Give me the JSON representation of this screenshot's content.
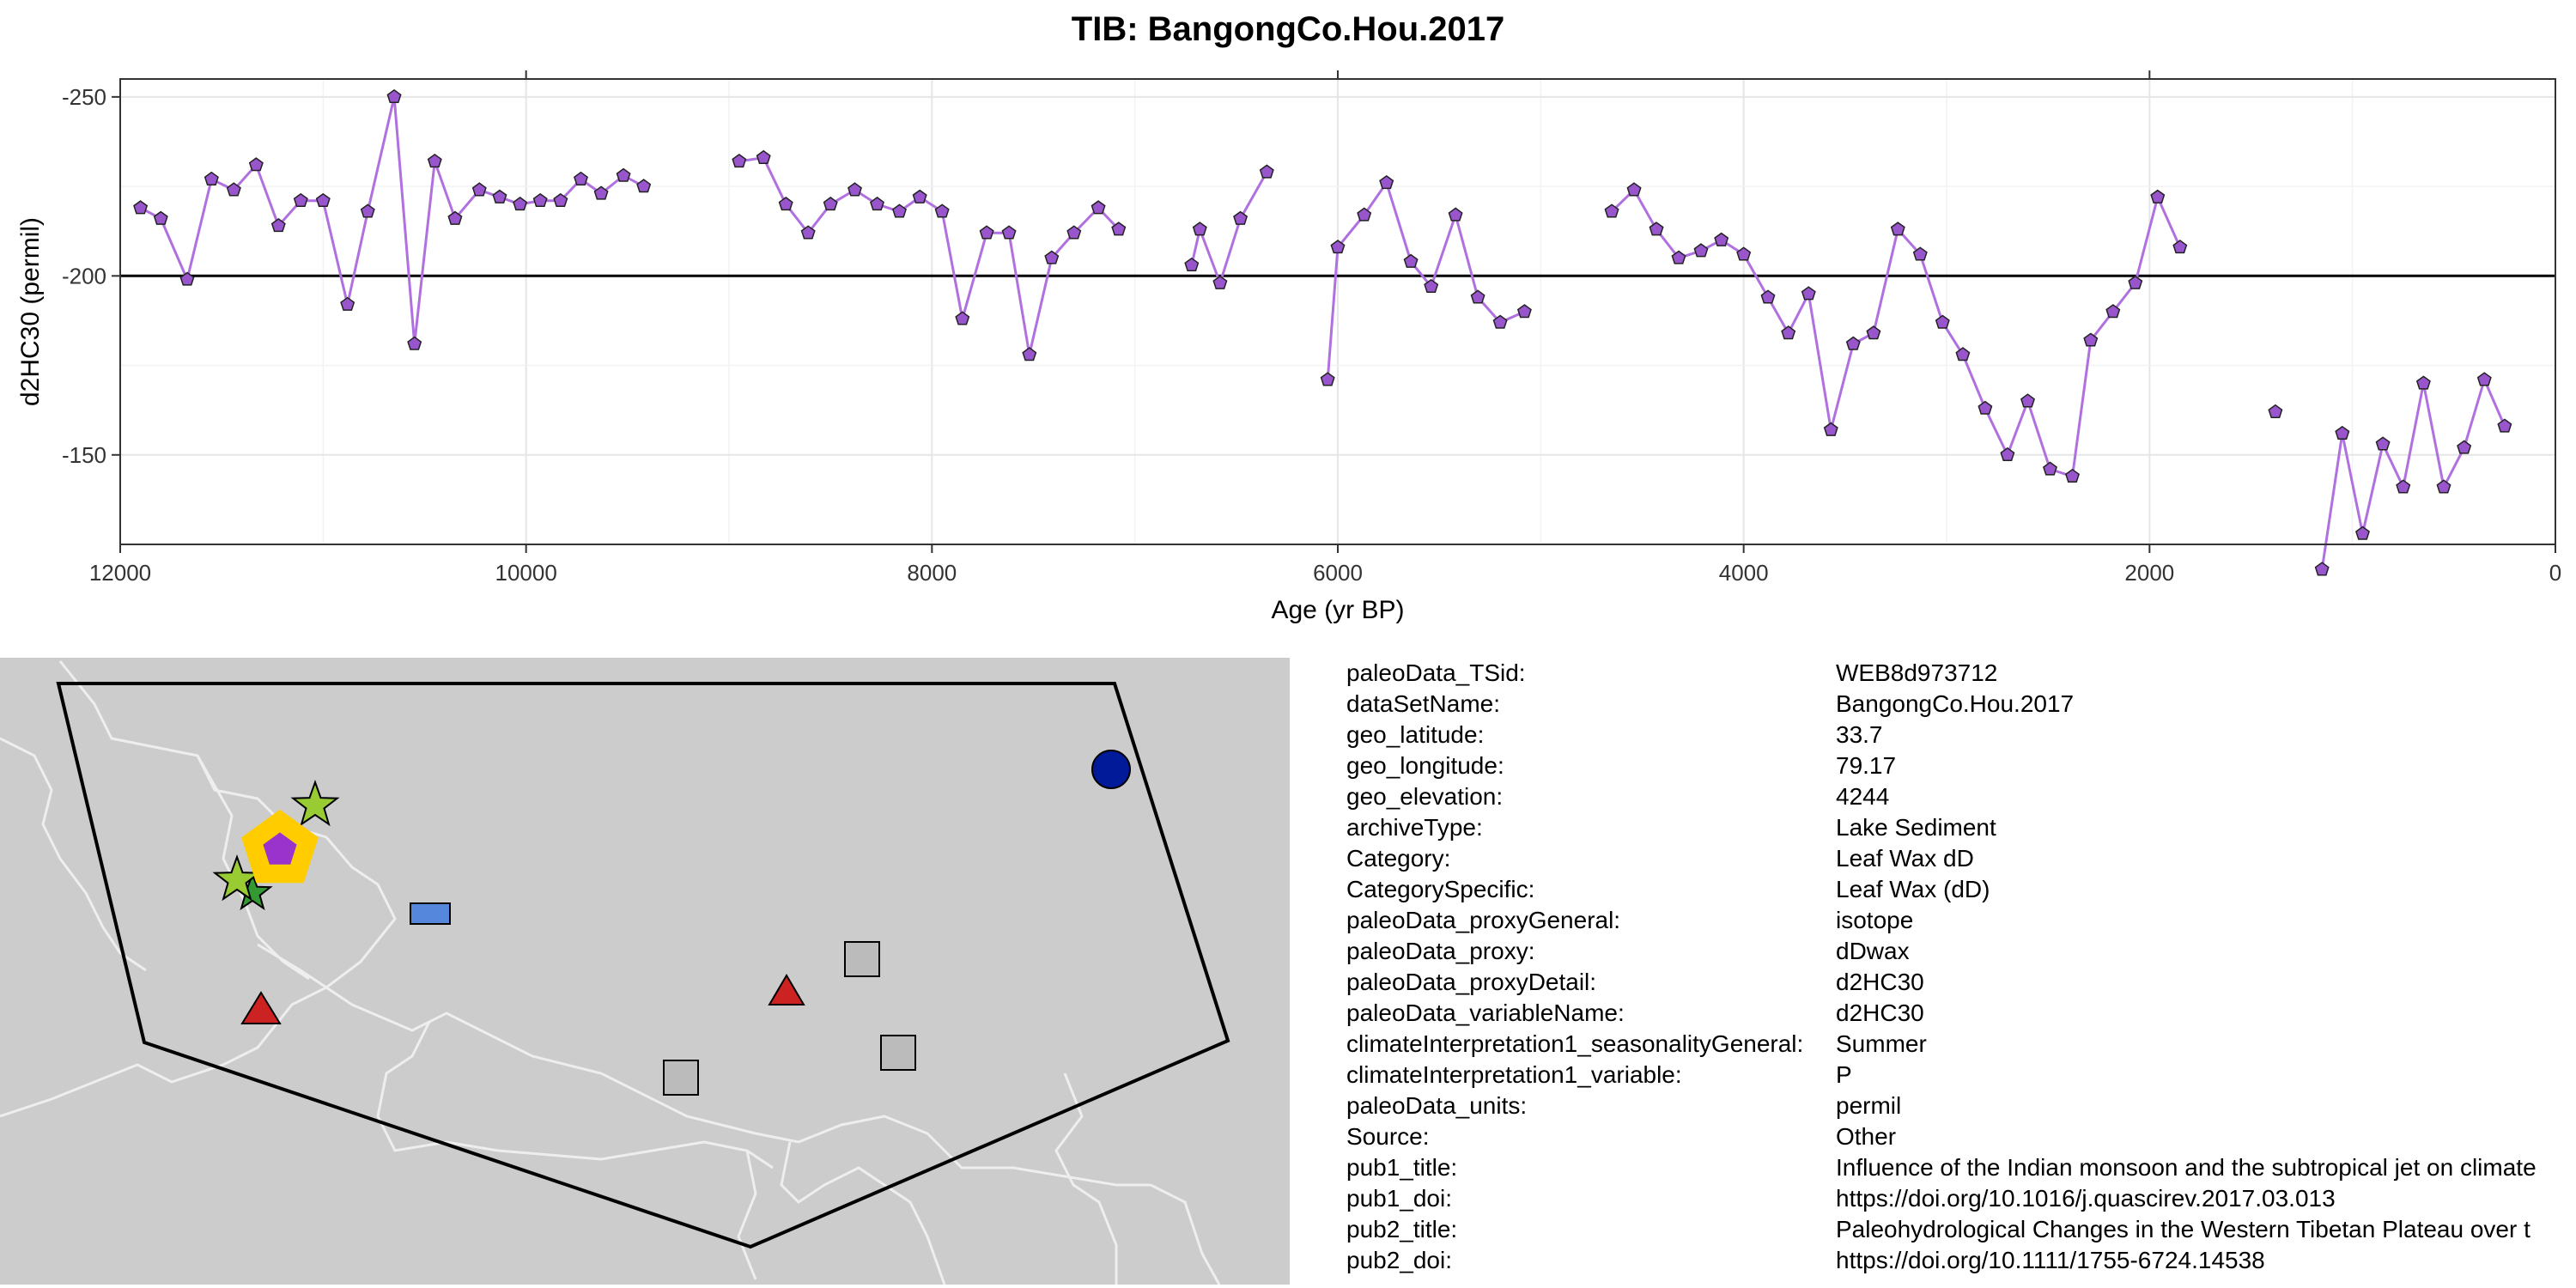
{
  "chart_data": {
    "type": "line",
    "title": "TIB: BangongCo.Hou.2017",
    "xlabel": "Age (yr BP)",
    "ylabel": "d2HC30 (permil)",
    "xlim": [
      12000,
      0
    ],
    "x_reversed": true,
    "ylim": [
      -125,
      -255
    ],
    "y_reversed": true,
    "x_ticks": [
      "12000",
      "10000",
      "8000",
      "6000",
      "4000",
      "2000",
      "0"
    ],
    "y_ticks": [
      "-250",
      "-200",
      "-150"
    ],
    "reference_line_y": -200,
    "grid": true,
    "line_color": "#b070e0",
    "marker_color": "#9955cc",
    "series": [
      {
        "values": [
          [
            [
              11900,
              -219
            ],
            [
              11800,
              -216
            ],
            [
              11670,
              -199
            ],
            [
              11550,
              -227
            ],
            [
              11440,
              -224
            ],
            [
              11330,
              -231
            ],
            [
              11220,
              -214
            ],
            [
              11110,
              -221
            ],
            [
              11000,
              -221
            ],
            [
              10880,
              -192
            ],
            [
              10780,
              -218
            ],
            [
              10650,
              -250
            ],
            [
              10550,
              -181
            ],
            [
              10450,
              -232
            ],
            [
              10350,
              -216
            ],
            [
              10230,
              -224
            ],
            [
              10130,
              -222
            ],
            [
              10030,
              -220
            ],
            [
              9930,
              -221
            ],
            [
              9830,
              -221
            ],
            [
              9730,
              -227
            ],
            [
              9630,
              -223
            ],
            [
              9520,
              -228
            ],
            [
              9420,
              -225
            ]
          ],
          [
            [
              8950,
              -232
            ],
            [
              8830,
              -233
            ],
            [
              8720,
              -220
            ],
            [
              8610,
              -212
            ],
            [
              8500,
              -220
            ],
            [
              8380,
              -224
            ],
            [
              8270,
              -220
            ],
            [
              8160,
              -218
            ],
            [
              8060,
              -222
            ],
            [
              7950,
              -218
            ],
            [
              7850,
              -188
            ],
            [
              7730,
              -212
            ],
            [
              7620,
              -212
            ],
            [
              7520,
              -178
            ],
            [
              7410,
              -205
            ],
            [
              7300,
              -212
            ],
            [
              7180,
              -219
            ],
            [
              7080,
              -213
            ]
          ],
          [
            [
              6720,
              -203
            ],
            [
              6680,
              -213
            ],
            [
              6580,
              -198
            ],
            [
              6480,
              -216
            ],
            [
              6350,
              -229
            ]
          ],
          [
            [
              6050,
              -171
            ],
            [
              6000,
              -208
            ],
            [
              5870,
              -217
            ],
            [
              5760,
              -226
            ],
            [
              5640,
              -204
            ],
            [
              5540,
              -197
            ],
            [
              5420,
              -217
            ],
            [
              5310,
              -194
            ],
            [
              5200,
              -187
            ],
            [
              5080,
              -190
            ]
          ],
          [
            [
              4650,
              -218
            ],
            [
              4540,
              -224
            ],
            [
              4430,
              -213
            ],
            [
              4320,
              -205
            ],
            [
              4210,
              -207
            ],
            [
              4110,
              -210
            ],
            [
              4000,
              -206
            ],
            [
              3880,
              -194
            ],
            [
              3780,
              -184
            ],
            [
              3680,
              -195
            ],
            [
              3570,
              -157
            ],
            [
              3460,
              -181
            ],
            [
              3360,
              -184
            ],
            [
              3240,
              -213
            ],
            [
              3130,
              -206
            ],
            [
              3020,
              -187
            ],
            [
              2920,
              -178
            ],
            [
              2810,
              -163
            ],
            [
              2700,
              -150
            ],
            [
              2600,
              -165
            ],
            [
              2490,
              -146
            ],
            [
              2380,
              -144
            ],
            [
              2290,
              -182
            ],
            [
              2180,
              -190
            ],
            [
              2070,
              -198
            ],
            [
              1960,
              -222
            ],
            [
              1850,
              -208
            ]
          ],
          [
            [
              1380,
              -162
            ]
          ],
          [
            [
              1150,
              -118
            ],
            [
              1050,
              -156
            ],
            [
              950,
              -128
            ],
            [
              850,
              -153
            ],
            [
              750,
              -141
            ],
            [
              650,
              -170
            ],
            [
              550,
              -141
            ],
            [
              450,
              -152
            ],
            [
              350,
              -171
            ],
            [
              250,
              -158
            ]
          ]
        ]
      }
    ],
    "map": {
      "polygon_color": "#000000",
      "land_color": "#cccccc",
      "border_color": "#eeeeee",
      "marker_colors": {
        "target": "#9933cc",
        "target_ring": "#ffcc00",
        "stars": "#99cc33",
        "dark_star": "#339933",
        "rectangle": "#5588dd",
        "triangles": "#cc2222",
        "squares": "#bbbbbb",
        "circle": "#001a99"
      }
    }
  },
  "metadata": [
    {
      "key": "paleoData_TSid:",
      "value": "WEB8d973712"
    },
    {
      "key": "dataSetName:",
      "value": "BangongCo.Hou.2017"
    },
    {
      "key": "geo_latitude:",
      "value": "33.7"
    },
    {
      "key": "geo_longitude:",
      "value": "79.17"
    },
    {
      "key": "geo_elevation:",
      "value": "4244"
    },
    {
      "key": "archiveType:",
      "value": "Lake Sediment"
    },
    {
      "key": "Category:",
      "value": "Leaf Wax dD"
    },
    {
      "key": "CategorySpecific:",
      "value": "Leaf Wax (dD)"
    },
    {
      "key": "paleoData_proxyGeneral:",
      "value": "isotope"
    },
    {
      "key": "paleoData_proxy:",
      "value": "dDwax"
    },
    {
      "key": "paleoData_proxyDetail:",
      "value": "d2HC30"
    },
    {
      "key": "paleoData_variableName:",
      "value": "d2HC30"
    },
    {
      "key": "climateInterpretation1_seasonalityGeneral:",
      "value": "Summer"
    },
    {
      "key": "climateInterpretation1_variable:",
      "value": "P"
    },
    {
      "key": "paleoData_units:",
      "value": "permil"
    },
    {
      "key": "Source:",
      "value": "Other"
    },
    {
      "key": "pub1_title:",
      "value": "Influence of the Indian monsoon and the subtropical jet on climate"
    },
    {
      "key": "pub1_doi:",
      "value": "https://doi.org/10.1016/j.quascirev.2017.03.013"
    },
    {
      "key": "pub2_title:",
      "value": "Paleohydrological Changes in the Western Tibetan Plateau over t"
    },
    {
      "key": "pub2_doi:",
      "value": "https://doi.org/10.1111/1755-6724.14538"
    }
  ]
}
